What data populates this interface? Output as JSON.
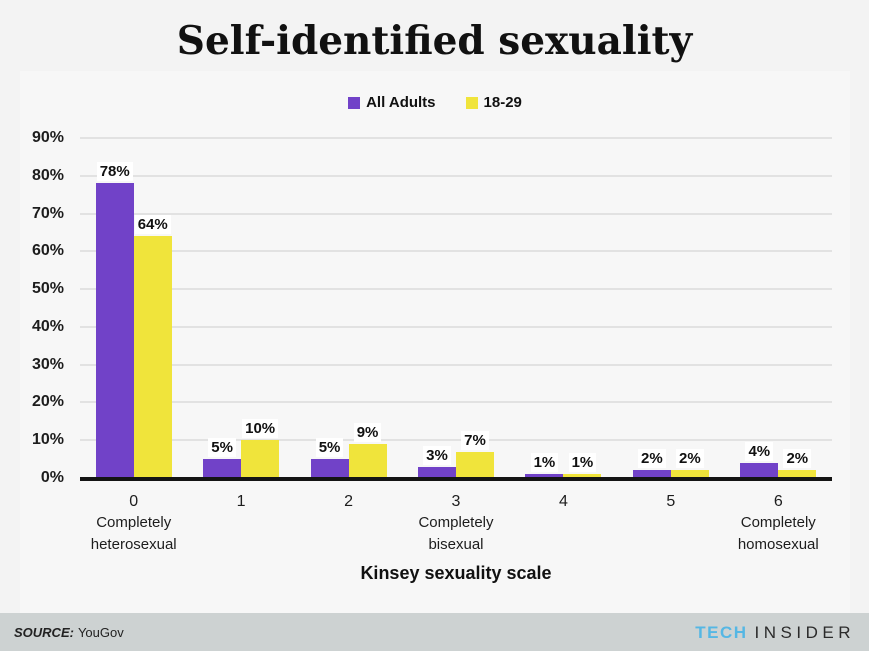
{
  "title": "Self-identified sexuality",
  "legend": [
    {
      "label": "All Adults",
      "color": "#7142c8"
    },
    {
      "label": "18-29",
      "color": "#f0e43b"
    }
  ],
  "chart_data": {
    "type": "bar",
    "title": "Self-identified sexuality",
    "categories": [
      "0",
      "1",
      "2",
      "3",
      "4",
      "5",
      "6"
    ],
    "category_sublabels": [
      [
        "Completely",
        "heterosexual"
      ],
      [],
      [],
      [
        "Completely",
        "bisexual"
      ],
      [],
      [],
      [
        "Completely",
        "homosexual"
      ]
    ],
    "series": [
      {
        "name": "All Adults",
        "color": "#7142c8",
        "values": [
          78,
          5,
          5,
          3,
          1,
          2,
          4
        ]
      },
      {
        "name": "18-29",
        "color": "#f0e43b",
        "values": [
          64,
          10,
          9,
          7,
          1,
          2,
          2
        ]
      }
    ],
    "value_suffix": "%",
    "xlabel": "Kinsey sexuality scale",
    "ylabel": "",
    "ylim": [
      0,
      90
    ],
    "y_tick_labels": [
      "0%",
      "10%",
      "20%",
      "30%",
      "40%",
      "50%",
      "60%",
      "70%",
      "80%",
      "90%"
    ],
    "grid": true,
    "legend_position": "top"
  },
  "footer": {
    "source_label": "SOURCE:",
    "source_value": "YouGov",
    "brand": {
      "part1": "TECH",
      "part2": "INSIDER"
    }
  },
  "colors": {
    "purple": "#7142c8",
    "yellow": "#f0e43b",
    "brand_blue": "#55b7e4",
    "footer_bg": "#cdd2d2",
    "background": "#f3f3f3",
    "panel": "#f7f7f7",
    "gridline": "#e2e2e2"
  }
}
